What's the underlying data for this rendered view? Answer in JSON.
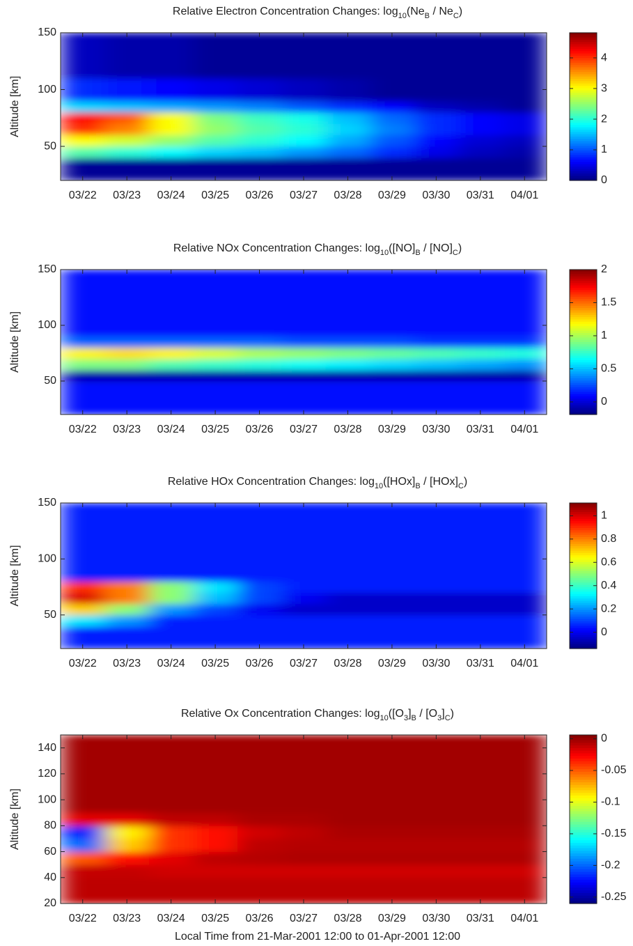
{
  "chart_data": [
    {
      "type": "heatmap",
      "colormap": "jet",
      "title": [
        "Relative Electron Concentration Changes: log",
        "10",
        "(Ne",
        "B",
        " / Ne",
        "C",
        ")"
      ],
      "ylabel": "Altitude [km]",
      "xbins": [
        21.5,
        22.5,
        23.5,
        24.5,
        25.5,
        26.5,
        27.5,
        28.5,
        29.5,
        30.5,
        31.5,
        32.5
      ],
      "ybins": [
        20,
        40,
        50,
        60,
        70,
        80,
        90,
        110,
        150
      ],
      "z": [
        [
          0.1,
          0.1,
          0.1,
          0.1,
          0.1,
          0.1,
          0.1,
          0.1,
          0.1,
          0.1,
          0.1
        ],
        [
          2.2,
          2.0,
          1.8,
          1.6,
          1.5,
          1.3,
          1.1,
          0.8,
          0.5,
          0.3,
          0.2
        ],
        [
          3.0,
          2.8,
          2.5,
          2.2,
          2.0,
          1.8,
          1.4,
          1.0,
          0.6,
          0.4,
          0.3
        ],
        [
          4.0,
          3.6,
          3.0,
          2.5,
          2.2,
          2.0,
          1.6,
          1.2,
          0.8,
          0.6,
          0.5
        ],
        [
          4.2,
          3.8,
          3.0,
          2.4,
          2.1,
          1.9,
          1.5,
          1.1,
          0.8,
          0.6,
          0.5
        ],
        [
          1.6,
          1.5,
          1.4,
          1.3,
          1.2,
          1.0,
          0.8,
          0.6,
          0.3,
          0.2,
          0.1
        ],
        [
          0.8,
          0.7,
          0.6,
          0.5,
          0.4,
          0.3,
          0.2,
          0.1,
          0.1,
          0.1,
          0.1
        ],
        [
          0.3,
          0.2,
          0.2,
          0.1,
          0.1,
          0.1,
          0.1,
          0.1,
          0.1,
          0.1,
          0.1
        ]
      ],
      "xlim": [
        21.5,
        32.5
      ],
      "xticks": [
        {
          "value": 22,
          "label": "03/22"
        },
        {
          "value": 23,
          "label": "03/23"
        },
        {
          "value": 24,
          "label": "03/24"
        },
        {
          "value": 25,
          "label": "03/25"
        },
        {
          "value": 26,
          "label": "03/26"
        },
        {
          "value": 27,
          "label": "03/27"
        },
        {
          "value": 28,
          "label": "03/28"
        },
        {
          "value": 29,
          "label": "03/29"
        },
        {
          "value": 30,
          "label": "03/30"
        },
        {
          "value": 31,
          "label": "03/31"
        },
        {
          "value": 32,
          "label": "04/01"
        }
      ],
      "ylim": [
        20,
        150
      ],
      "yticks": [
        50,
        100,
        150
      ],
      "zlim": [
        0,
        4.82
      ],
      "zticks": [
        0,
        1,
        2,
        3,
        4
      ]
    },
    {
      "type": "heatmap",
      "colormap": "jet",
      "title": [
        "Relative NOx Concentration Changes: log",
        "10",
        "([NO]",
        "B",
        " / [NO]",
        "C",
        ")"
      ],
      "ylabel": "Altitude [km]",
      "xbins": [
        21.5,
        22.5,
        23.5,
        24.5,
        25.5,
        26.5,
        27.5,
        28.5,
        29.5,
        30.5,
        31.5,
        32.5
      ],
      "ybins": [
        20,
        40,
        50,
        60,
        70,
        80,
        90,
        110,
        150
      ],
      "z": [
        [
          0.1,
          0.1,
          0.1,
          0.1,
          0.1,
          0.1,
          0.1,
          0.1,
          0.1,
          0.1,
          0.1
        ],
        [
          0.1,
          0.1,
          0.1,
          0.1,
          0.1,
          0.1,
          0.1,
          0.1,
          0.1,
          0.1,
          0.1
        ],
        [
          -0.1,
          -0.1,
          -0.1,
          -0.1,
          -0.1,
          -0.1,
          -0.1,
          -0.1,
          -0.1,
          -0.1,
          -0.1
        ],
        [
          0.9,
          0.9,
          0.8,
          0.75,
          0.7,
          0.65,
          0.6,
          0.55,
          0.5,
          0.45,
          0.4
        ],
        [
          1.2,
          1.25,
          1.2,
          1.1,
          1.0,
          0.95,
          0.9,
          0.85,
          0.8,
          0.75,
          0.7
        ],
        [
          0.3,
          0.3,
          0.3,
          0.3,
          0.3,
          0.25,
          0.25,
          0.25,
          0.2,
          0.2,
          0.2
        ],
        [
          0.1,
          0.1,
          0.1,
          0.1,
          0.1,
          0.1,
          0.1,
          0.1,
          0.1,
          0.1,
          0.1
        ],
        [
          0.1,
          0.1,
          0.1,
          0.1,
          0.1,
          0.1,
          0.1,
          0.1,
          0.1,
          0.1,
          0.1
        ]
      ],
      "xlim": [
        21.5,
        32.5
      ],
      "xticks": [
        {
          "value": 22,
          "label": "03/22"
        },
        {
          "value": 23,
          "label": "03/23"
        },
        {
          "value": 24,
          "label": "03/24"
        },
        {
          "value": 25,
          "label": "03/25"
        },
        {
          "value": 26,
          "label": "03/26"
        },
        {
          "value": 27,
          "label": "03/27"
        },
        {
          "value": 28,
          "label": "03/28"
        },
        {
          "value": 29,
          "label": "03/29"
        },
        {
          "value": 30,
          "label": "03/30"
        },
        {
          "value": 31,
          "label": "03/31"
        },
        {
          "value": 32,
          "label": "04/01"
        }
      ],
      "ylim": [
        20,
        150
      ],
      "yticks": [
        50,
        100,
        150
      ],
      "zlim": [
        -0.19,
        2
      ],
      "zticks": [
        0,
        0.5,
        1,
        1.5,
        2
      ]
    },
    {
      "type": "heatmap",
      "colormap": "jet",
      "title": [
        "Relative HOx Concentration Changes: log",
        "10",
        "([HOx]",
        "B",
        " / [HOx]",
        "C",
        ")"
      ],
      "ylabel": "Altitude [km]",
      "xbins": [
        21.5,
        22.5,
        23.5,
        24.5,
        25.5,
        26.5,
        27.5,
        28.5,
        29.5,
        30.5,
        31.5,
        32.5
      ],
      "ybins": [
        20,
        40,
        50,
        60,
        70,
        80,
        90,
        110,
        150
      ],
      "z": [
        [
          0.05,
          0.05,
          0.05,
          0.05,
          0.05,
          0.05,
          0.05,
          0.05,
          0.05,
          0.05,
          0.05
        ],
        [
          0.3,
          0.2,
          0.05,
          0.05,
          0.05,
          0.05,
          0.05,
          0.05,
          0.05,
          0.05,
          0.05
        ],
        [
          0.7,
          0.5,
          0.2,
          0.1,
          0.0,
          -0.05,
          -0.05,
          -0.05,
          -0.05,
          -0.05,
          -0.05
        ],
        [
          1.0,
          0.8,
          0.5,
          0.25,
          0.1,
          0.0,
          -0.05,
          -0.05,
          -0.05,
          -0.05,
          -0.05
        ],
        [
          0.9,
          0.8,
          0.5,
          0.3,
          0.1,
          0.05,
          0.05,
          0.05,
          0.05,
          0.05,
          0.05
        ],
        [
          0.05,
          0.05,
          0.05,
          0.05,
          0.05,
          0.05,
          0.05,
          0.05,
          0.05,
          0.05,
          0.05
        ],
        [
          0.05,
          0.05,
          0.05,
          0.05,
          0.05,
          0.05,
          0.05,
          0.05,
          0.05,
          0.05,
          0.05
        ],
        [
          0.05,
          0.05,
          0.05,
          0.05,
          0.05,
          0.05,
          0.05,
          0.05,
          0.05,
          0.05,
          0.05
        ]
      ],
      "xlim": [
        21.5,
        32.5
      ],
      "xticks": [
        {
          "value": 22,
          "label": "03/22"
        },
        {
          "value": 23,
          "label": "03/23"
        },
        {
          "value": 24,
          "label": "03/24"
        },
        {
          "value": 25,
          "label": "03/25"
        },
        {
          "value": 26,
          "label": "03/26"
        },
        {
          "value": 27,
          "label": "03/27"
        },
        {
          "value": 28,
          "label": "03/28"
        },
        {
          "value": 29,
          "label": "03/29"
        },
        {
          "value": 30,
          "label": "03/30"
        },
        {
          "value": 31,
          "label": "03/31"
        },
        {
          "value": 32,
          "label": "04/01"
        }
      ],
      "ylim": [
        20,
        150
      ],
      "yticks": [
        50,
        100,
        150
      ],
      "zlim": [
        -0.14,
        1.11
      ],
      "zticks": [
        0,
        0.2,
        0.4,
        0.6,
        0.8,
        1
      ]
    },
    {
      "type": "heatmap",
      "colormap": "jet",
      "title": [
        "Relative Ox Concentration Changes: log",
        "10",
        "([O",
        "3",
        "]",
        "B",
        " / [O",
        "3",
        "]",
        "C",
        ")"
      ],
      "subscripts": [
        1,
        3,
        5,
        7,
        9
      ],
      "ylabel": "Altitude [km]",
      "xlabel": "Local Time from 21-Mar-2001 12:00 to 01-Apr-2001 12:00",
      "xbins": [
        21.5,
        22.5,
        23.5,
        24.5,
        25.5,
        26.5,
        27.5,
        28.5,
        29.5,
        30.5,
        31.5,
        32.5
      ],
      "ybins": [
        20,
        40,
        50,
        60,
        70,
        80,
        90,
        110,
        150
      ],
      "z": [
        [
          -0.01,
          -0.01,
          -0.01,
          -0.01,
          -0.01,
          -0.01,
          -0.01,
          -0.01,
          -0.01,
          -0.01,
          -0.01
        ],
        [
          -0.012,
          -0.012,
          -0.015,
          -0.015,
          -0.015,
          -0.015,
          -0.015,
          -0.015,
          -0.015,
          -0.015,
          -0.015
        ],
        [
          -0.05,
          -0.03,
          -0.02,
          -0.01,
          -0.008,
          -0.006,
          -0.006,
          -0.006,
          -0.006,
          -0.006,
          -0.006
        ],
        [
          -0.2,
          -0.08,
          -0.04,
          -0.03,
          -0.01,
          -0.008,
          -0.008,
          -0.008,
          -0.008,
          -0.008,
          -0.008
        ],
        [
          -0.22,
          -0.09,
          -0.04,
          -0.03,
          -0.015,
          -0.01,
          -0.005,
          -0.005,
          -0.005,
          -0.005,
          -0.005
        ],
        [
          -0.02,
          -0.02,
          -0.01,
          -0.01,
          -0.005,
          -0.005,
          -0.003,
          -0.003,
          -0.003,
          -0.003,
          -0.003
        ],
        [
          -0.003,
          -0.003,
          -0.003,
          -0.003,
          -0.003,
          -0.003,
          -0.003,
          -0.003,
          -0.003,
          -0.003,
          -0.003
        ],
        [
          -0.003,
          -0.003,
          -0.003,
          -0.003,
          -0.003,
          -0.003,
          -0.003,
          -0.003,
          -0.003,
          -0.003,
          -0.003
        ]
      ],
      "xlim": [
        21.5,
        32.5
      ],
      "xticks": [
        {
          "value": 22,
          "label": "03/22"
        },
        {
          "value": 23,
          "label": "03/23"
        },
        {
          "value": 24,
          "label": "03/24"
        },
        {
          "value": 25,
          "label": "03/25"
        },
        {
          "value": 26,
          "label": "03/26"
        },
        {
          "value": 27,
          "label": "03/27"
        },
        {
          "value": 28,
          "label": "03/28"
        },
        {
          "value": 29,
          "label": "03/29"
        },
        {
          "value": 30,
          "label": "03/30"
        },
        {
          "value": 31,
          "label": "03/31"
        },
        {
          "value": 32,
          "label": "04/01"
        }
      ],
      "ylim": [
        20,
        150
      ],
      "yticks": [
        20,
        40,
        60,
        80,
        100,
        120,
        140
      ],
      "zlim": [
        -0.26,
        0.006
      ],
      "zticks": [
        0,
        -0.05,
        -0.1,
        -0.15,
        -0.2,
        -0.25
      ]
    }
  ]
}
